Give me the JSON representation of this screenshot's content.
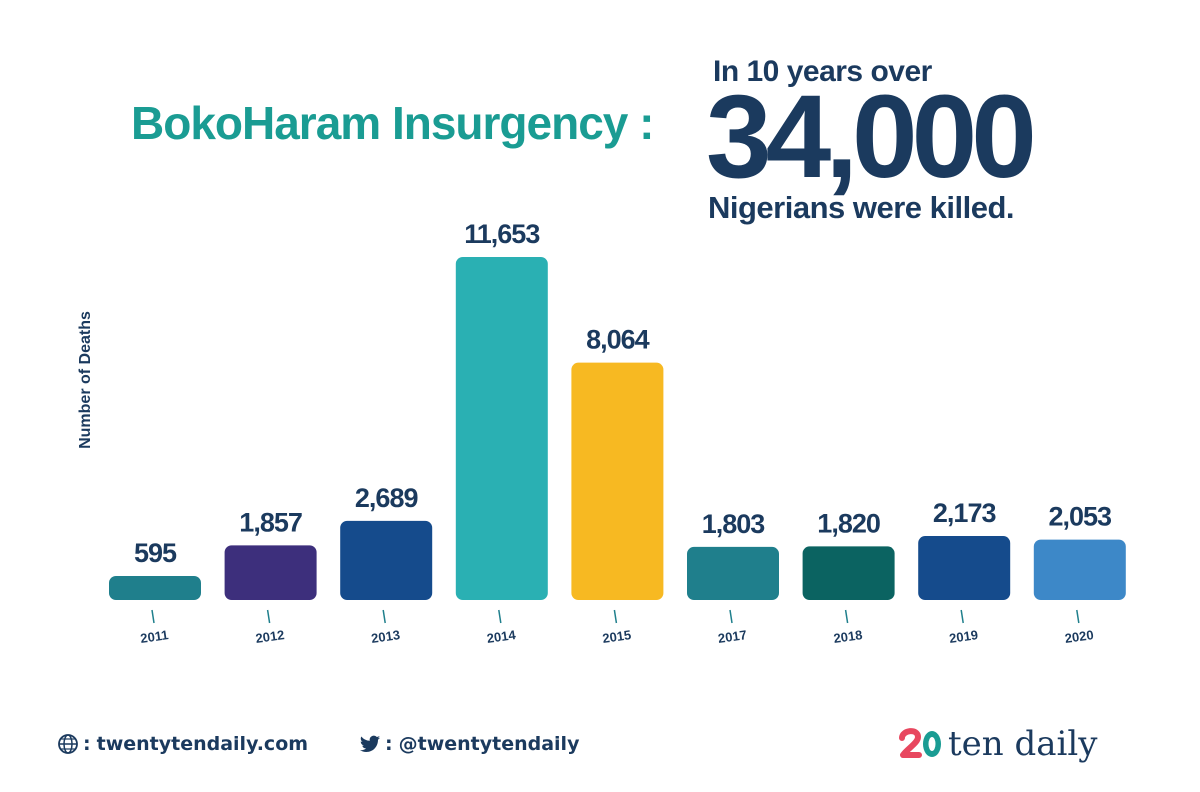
{
  "header": {
    "title": "BokoHaram Insurgency :",
    "headline_top": "In 10 years over",
    "headline_number": "34,000",
    "headline_bottom": "Nigerians were killed."
  },
  "chart_data": {
    "type": "bar",
    "ylabel": "Number of Deaths",
    "categories": [
      "2011",
      "2012",
      "2013",
      "2014",
      "2015",
      "2017",
      "2018",
      "2019",
      "2020"
    ],
    "values": [
      595,
      1857,
      2689,
      11653,
      8064,
      1803,
      1820,
      2173,
      2053
    ],
    "data_labels": [
      "595",
      "1,857",
      "2,689",
      "11,653",
      "8,064",
      "1,803",
      "1,820",
      "2,173",
      "2,053"
    ],
    "colors": [
      "#1f7f8c",
      "#3d2f7c",
      "#154b8c",
      "#2ab0b3",
      "#f7b922",
      "#1f7f8c",
      "#0b6361",
      "#154b8c",
      "#3d88c8"
    ],
    "ylim": [
      0,
      11653
    ],
    "grid": false,
    "legend": "none"
  },
  "footer": {
    "website": "twentytendaily.com",
    "twitter": "@twentytendaily",
    "website_icon": "globe-icon",
    "twitter_icon": "twitter-bird-icon",
    "separator": ":"
  },
  "brand": {
    "logo_text": "ten daily",
    "accent_pink": "#e8475f",
    "accent_teal": "#1a9c93",
    "navy": "#1b3a5e"
  }
}
